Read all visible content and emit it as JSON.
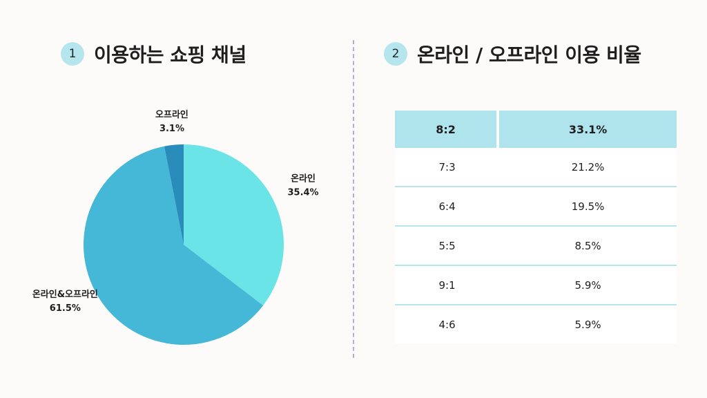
{
  "section1": {
    "number": "1",
    "title": "이용하는 쇼핑 채널"
  },
  "section2": {
    "number": "2",
    "title": "온라인 / 오프라인 이용 비율"
  },
  "chart_data": [
    {
      "type": "pie",
      "title": "이용하는 쇼핑 채널",
      "slices": [
        {
          "label": "온라인",
          "value": 35.4,
          "display": "35.4%",
          "color": "#6be4e8"
        },
        {
          "label": "온라인&오프라인",
          "value": 61.5,
          "display": "61.5%",
          "color": "#44b8d6"
        },
        {
          "label": "오프라인",
          "value": 3.1,
          "display": "3.1%",
          "color": "#2a8cba"
        }
      ]
    },
    {
      "type": "table",
      "title": "온라인 / 오프라인 이용 비율",
      "rows": [
        [
          "8:2",
          "33.1%"
        ],
        [
          "7:3",
          "21.2%"
        ],
        [
          "6:4",
          "19.5%"
        ],
        [
          "5:5",
          "8.5%"
        ],
        [
          "9:1",
          "5.9%"
        ],
        [
          "4:6",
          "5.9%"
        ]
      ]
    }
  ]
}
